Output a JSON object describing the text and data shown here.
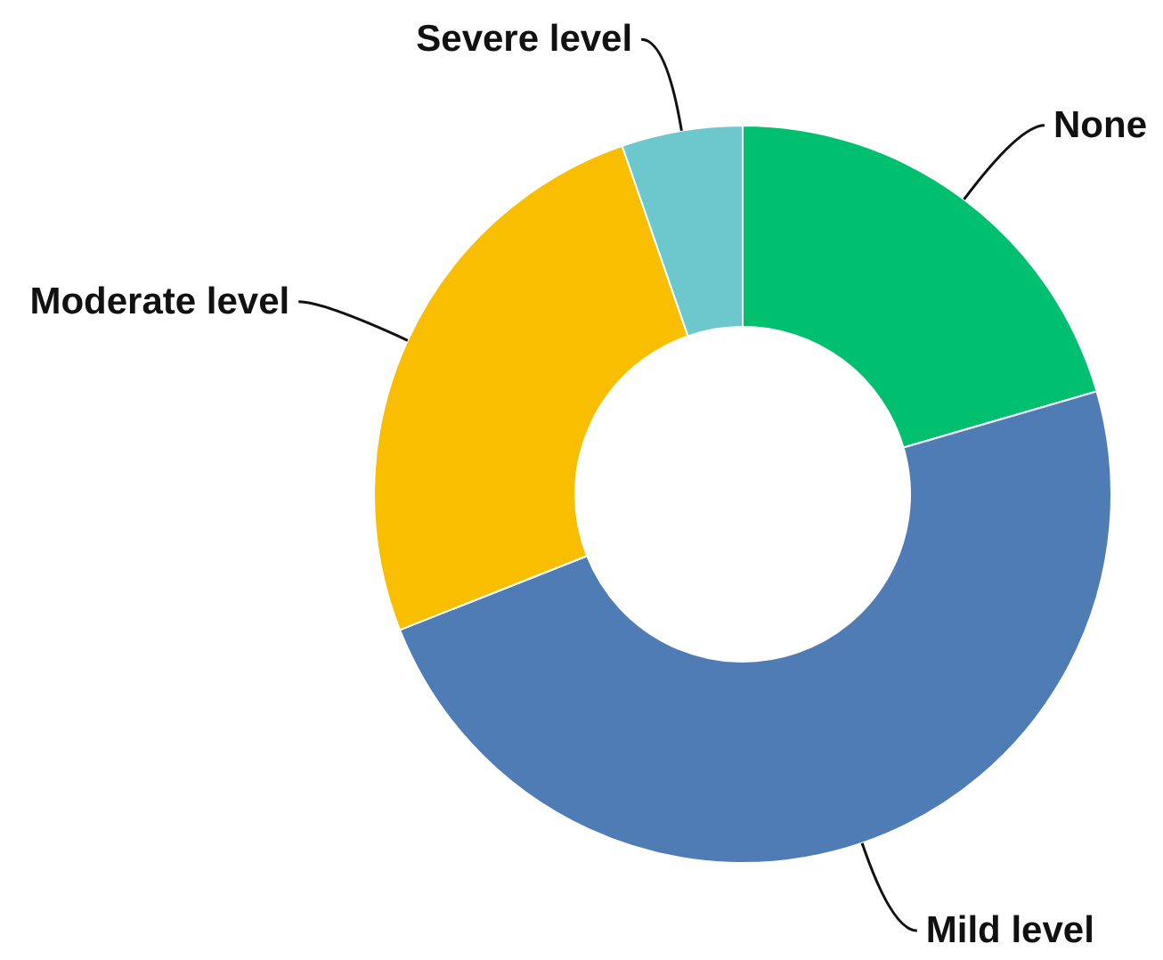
{
  "chart_data": {
    "type": "donut",
    "categories": [
      "None",
      "Mild level",
      "Moderate level",
      "Severe level"
    ],
    "values": [
      20.5,
      48.5,
      25.7,
      5.3
    ],
    "colors": [
      "#00bf6f",
      "#4f7cb5",
      "#f9be00",
      "#6cc8cc"
    ]
  }
}
